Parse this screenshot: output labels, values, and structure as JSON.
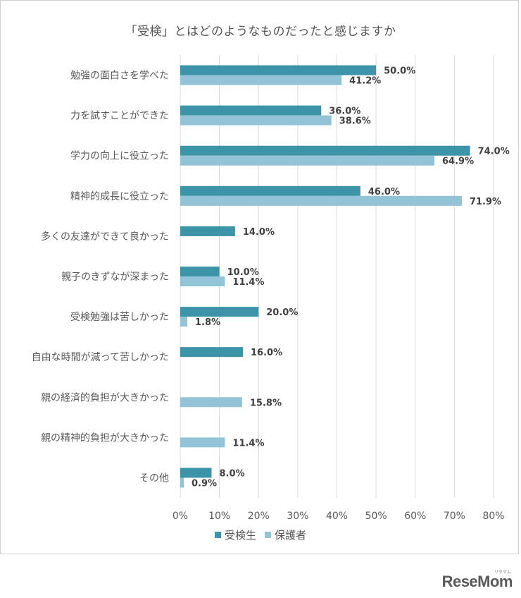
{
  "chart_data": {
    "type": "bar",
    "orientation": "horizontal",
    "title": "「受検」とはどのようなものだったと感じますか",
    "categories": [
      "勉強の面白さを学べた",
      "力を試すことができた",
      "学力の向上に役立った",
      "精神的成長に役立った",
      "多くの友達ができて良かった",
      "親子のきずなが深まった",
      "受検勉強は苦しかった",
      "自由な時間が減って苦しかった",
      "親の経済的負担が大きかった",
      "親の精神的負担が大きかった",
      "その他"
    ],
    "series": [
      {
        "name": "受検生",
        "color": "#3d93a8",
        "values": [
          50.0,
          36.0,
          74.0,
          46.0,
          14.0,
          10.0,
          20.0,
          16.0,
          null,
          null,
          8.0
        ],
        "labels": [
          "50.0%",
          "36.0%",
          "74.0%",
          "46.0%",
          "14.0%",
          "10.0%",
          "20.0%",
          "16.0%",
          "",
          "",
          "8.0%"
        ]
      },
      {
        "name": "保護者",
        "color": "#92c4d6",
        "values": [
          41.2,
          38.6,
          64.9,
          71.9,
          null,
          11.4,
          1.8,
          null,
          15.8,
          11.4,
          0.9
        ],
        "labels": [
          "41.2%",
          "38.6%",
          "64.9%",
          "71.9%",
          "",
          "11.4%",
          "1.8%",
          "",
          "15.8%",
          "11.4%",
          "0.9%"
        ]
      }
    ],
    "xlim": [
      0,
      80
    ],
    "xticks": [
      "0%",
      "10%",
      "20%",
      "30%",
      "40%",
      "50%",
      "60%",
      "70%",
      "80%"
    ],
    "grid": true,
    "legend_position": "bottom"
  },
  "brand": {
    "logo_text": "ReseMom",
    "logo_sub": "リセマム"
  }
}
